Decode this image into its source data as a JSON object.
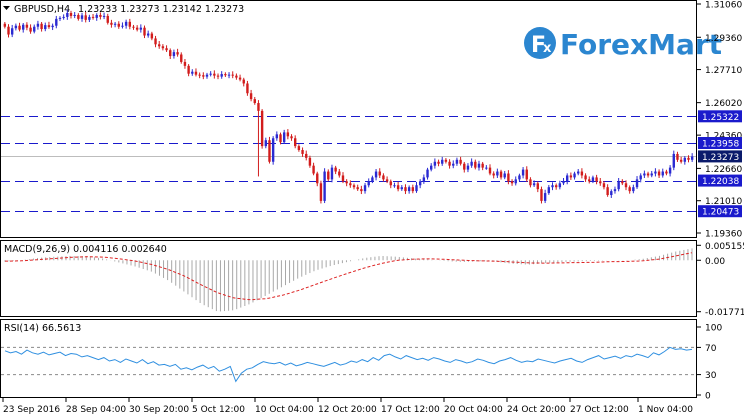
{
  "symbol": {
    "title": "GBPUSD,H4",
    "values": "1.23233 1.23273 1.23142 1.23273"
  },
  "brand": {
    "name": "ForexMart",
    "logo_letter": "F",
    "logo_letter2": "x"
  },
  "colors": {
    "bull": "#2a2ad2",
    "bear": "#d21c1c",
    "hline": "#1a1acc",
    "rsi": "#2f8fe0",
    "macd_bar": "#a8a8a8",
    "macd_signal": "#dd2222",
    "logo_bg": "#2b86d0",
    "price_tag": "#0a1a6b"
  },
  "chart_data": [
    {
      "type": "candlestick",
      "title": "GBPUSD,H4",
      "ylim": [
        1.1936,
        1.3106
      ],
      "y_ticks": [
        "1.31060",
        "1.29360",
        "1.27710",
        "1.26020",
        "1.24360",
        "1.22660",
        "1.21010",
        "1.19360"
      ],
      "x_tick_labels": [
        "23 Sep 2016",
        "28 Sep 04:00",
        "30 Sep 20:00",
        "5 Oct 12:00",
        "10 Oct 04:00",
        "12 Oct 20:00",
        "17 Oct 12:00",
        "20 Oct 04:00",
        "24 Oct 20:00",
        "27 Oct 12:00",
        "1 Nov 04:00"
      ],
      "levels": [
        {
          "value": 1.25322,
          "label": "1.25322"
        },
        {
          "value": 1.23958,
          "label": "1.23958"
        },
        {
          "value": 1.22038,
          "label": "1.22038"
        },
        {
          "value": 1.20473,
          "label": "1.20473"
        }
      ],
      "current_price": {
        "value": 1.23273,
        "label": "1.23273"
      },
      "closes": [
        1.299,
        1.295,
        1.2982,
        1.2995,
        1.2975,
        1.3,
        1.2985,
        1.2965,
        1.299,
        1.3005,
        1.2978,
        1.2998,
        1.2988,
        1.2995,
        1.303,
        1.3035,
        1.304,
        1.306,
        1.3045,
        1.305,
        1.303,
        1.3048,
        1.3025,
        1.304,
        1.3035,
        1.305,
        1.304,
        1.3045,
        1.301,
        1.3,
        1.3005,
        1.299,
        1.2995,
        1.3015,
        1.299,
        1.2985,
        1.2975,
        1.2985,
        1.2945,
        1.2955,
        1.293,
        1.29,
        1.289,
        1.288,
        1.287,
        1.284,
        1.286,
        1.2848,
        1.281,
        1.279,
        1.275,
        1.276,
        1.2745,
        1.2742,
        1.2735,
        1.2745,
        1.275,
        1.274,
        1.2735,
        1.2748,
        1.2742,
        1.2745,
        1.274,
        1.273,
        1.272,
        1.27,
        1.265,
        1.262,
        1.26,
        1.256,
        1.238,
        1.241,
        1.23,
        1.242,
        1.244,
        1.24,
        1.245,
        1.243,
        1.242,
        1.238,
        1.236,
        1.234,
        1.232,
        1.228,
        1.224,
        1.219,
        1.21,
        1.225,
        1.221,
        1.227,
        1.225,
        1.223,
        1.22,
        1.219,
        1.218,
        1.217,
        1.216,
        1.215,
        1.218,
        1.22,
        1.222,
        1.225,
        1.223,
        1.221,
        1.22,
        1.218,
        1.218,
        1.216,
        1.217,
        1.215,
        1.217,
        1.215,
        1.218,
        1.22,
        1.222,
        1.226,
        1.228,
        1.23,
        1.229,
        1.231,
        1.23,
        1.228,
        1.229,
        1.231,
        1.229,
        1.226,
        1.228,
        1.23,
        1.227,
        1.229,
        1.227,
        1.227,
        1.224,
        1.223,
        1.225,
        1.222,
        1.224,
        1.22,
        1.219,
        1.221,
        1.223,
        1.226,
        1.221,
        1.218,
        1.219,
        1.216,
        1.21,
        1.214,
        1.217,
        1.218,
        1.217,
        1.219,
        1.22,
        1.223,
        1.222,
        1.224,
        1.225,
        1.223,
        1.221,
        1.22,
        1.222,
        1.22,
        1.219,
        1.217,
        1.213,
        1.215,
        1.216,
        1.22,
        1.219,
        1.217,
        1.215,
        1.217,
        1.221,
        1.223,
        1.224,
        1.223,
        1.224,
        1.225,
        1.223,
        1.225,
        1.224,
        1.227,
        1.234,
        1.231,
        1.23,
        1.232,
        1.231,
        1.2327
      ]
    },
    {
      "type": "histogram_line",
      "title": "MACD(9,26,9) 0.004116 0.002640",
      "ylim": [
        -0.0185,
        0.0056
      ],
      "y_ticks": [
        "0.005155",
        "0.00",
        "-0.01771"
      ],
      "macd_values": [
        -0.0005,
        0.0,
        0.0008,
        0.0012,
        0.0015,
        0.0014,
        0.0006,
        -0.0008,
        -0.0022,
        -0.004,
        -0.007,
        -0.011,
        -0.015,
        -0.0177,
        -0.0172,
        -0.015,
        -0.012,
        -0.009,
        -0.006,
        -0.0035,
        -0.0018,
        -0.0005,
        0.0008,
        0.0015,
        0.0012,
        0.0006,
        0.0002,
        -0.0003,
        -0.0006,
        -0.0003,
        -0.0005,
        -0.0012,
        -0.0015,
        -0.001,
        -0.0006,
        -0.0004,
        -0.0002,
        0.0,
        -0.0001,
        0.0005,
        0.0015,
        0.003,
        0.0041
      ],
      "signal_values": [
        -0.0003,
        -0.0002,
        0.0002,
        0.0006,
        0.001,
        0.0012,
        0.0011,
        0.0005,
        -0.0003,
        -0.0015,
        -0.0032,
        -0.0055,
        -0.0085,
        -0.0112,
        -0.013,
        -0.0136,
        -0.0132,
        -0.012,
        -0.0103,
        -0.0083,
        -0.0063,
        -0.0044,
        -0.0026,
        -0.0011,
        0.0,
        0.0004,
        0.0005,
        0.0003,
        0.0,
        -0.0002,
        -0.0003,
        -0.0006,
        -0.0009,
        -0.001,
        -0.0009,
        -0.0008,
        -0.0007,
        -0.0005,
        -0.0004,
        -0.0002,
        0.0004,
        0.0015,
        0.0026
      ]
    },
    {
      "type": "line",
      "title": "RSI(14) 66.5613",
      "ylim": [
        0,
        100
      ],
      "y_ticks": [
        "100",
        "70",
        "30",
        "0"
      ],
      "levels": [
        70,
        30
      ],
      "values": [
        65,
        62,
        64,
        60,
        66,
        62,
        60,
        63,
        59,
        61,
        63,
        58,
        61,
        60,
        56,
        58,
        55,
        52,
        55,
        50,
        52,
        48,
        53,
        50,
        47,
        52,
        46,
        49,
        44,
        45,
        42,
        45,
        38,
        40,
        37,
        41,
        44,
        39,
        42,
        35,
        38,
        42,
        20,
        32,
        38,
        40,
        45,
        49,
        47,
        46,
        48,
        44,
        47,
        43,
        45,
        48,
        46,
        44,
        42,
        45,
        48,
        44,
        46,
        50,
        48,
        52,
        49,
        55,
        51,
        58,
        60,
        56,
        53,
        58,
        55,
        52,
        54,
        51,
        55,
        53,
        50,
        48,
        52,
        50,
        47,
        49,
        53,
        51,
        48,
        46,
        50,
        52,
        55,
        51,
        48,
        50,
        49,
        53,
        51,
        49,
        47,
        50,
        52,
        54,
        50,
        48,
        52,
        55,
        58,
        53,
        55,
        57,
        54,
        58,
        56,
        60,
        58,
        55,
        62,
        59,
        64,
        70,
        67,
        68,
        66,
        67
      ]
    }
  ]
}
